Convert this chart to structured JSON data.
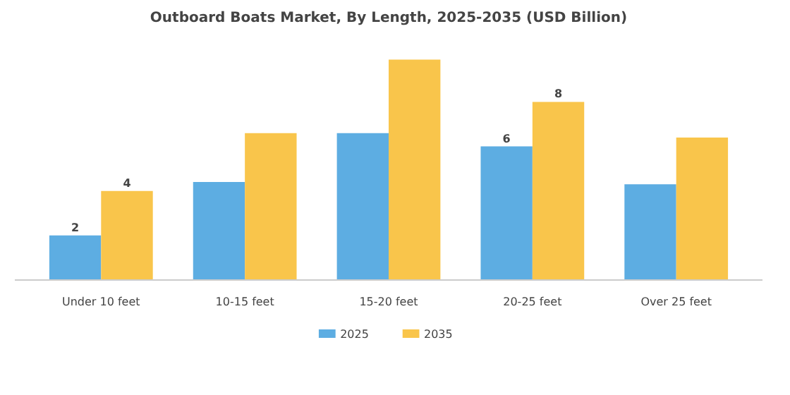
{
  "chart_data": {
    "type": "bar",
    "title": "Outboard Boats Market, By Length, 2025-2035 (USD Billion)",
    "categories": [
      "Under 10 feet",
      "10-15 feet",
      "15-20 feet",
      "20-25 feet",
      "Over 25 feet"
    ],
    "series": [
      {
        "name": "2025",
        "color": "#5dade2",
        "values": [
          2,
          4.4,
          6.6,
          6,
          4.3
        ],
        "value_labels": [
          "2",
          null,
          null,
          "6",
          null
        ]
      },
      {
        "name": "2035",
        "color": "#f9c54b",
        "values": [
          4,
          6.6,
          9.9,
          8,
          6.4
        ],
        "value_labels": [
          "4",
          null,
          null,
          "8",
          null
        ]
      }
    ],
    "legend": "bottom"
  }
}
